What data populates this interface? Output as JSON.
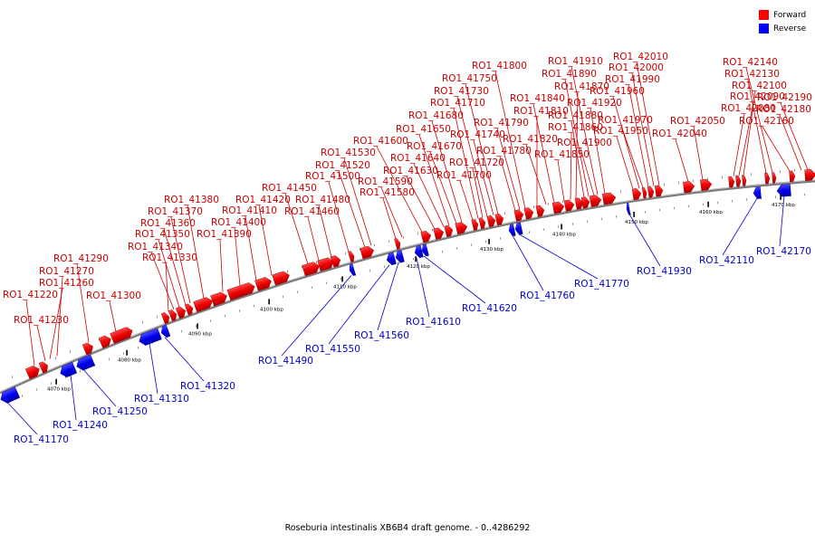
{
  "caption": "Roseburia intestinalis XB6B4 draft genome. - 0..4286292",
  "legend": [
    {
      "label": "Forward",
      "color": "#ff0000"
    },
    {
      "label": "Reverse",
      "color": "#0000ff"
    }
  ],
  "ticks": [
    "4070 kbp",
    "4080 kbp",
    "4090 kbp",
    "4100 kbp",
    "4110 kbp",
    "4120 kbp",
    "4130 kbp",
    "4140 kbp",
    "4150 kbp",
    "4160 kbp",
    "4170 kbp"
  ],
  "forward_labels": [
    "RO1_41220",
    "RO1_41230",
    "RO1_41260",
    "RO1_41270",
    "RO1_41290",
    "RO1_41300",
    "RO1_41330",
    "RO1_41340",
    "RO1_41350",
    "RO1_41360",
    "RO1_41370",
    "RO1_41380",
    "RO1_41390",
    "RO1_41400",
    "RO1_41410",
    "RO1_41420",
    "RO1_41450",
    "RO1_41460",
    "RO1_41480",
    "RO1_41500",
    "RO1_41520",
    "RO1_41530",
    "RO1_41580",
    "RO1_41590",
    "RO1_41600",
    "RO1_41630",
    "RO1_41640",
    "RO1_41650",
    "RO1_41670",
    "RO1_41680",
    "RO1_41700",
    "RO1_41710",
    "RO1_41720",
    "RO1_41730",
    "RO1_41740",
    "RO1_41750",
    "RO1_41780",
    "RO1_41790",
    "RO1_41800",
    "RO1_41810",
    "RO1_41820",
    "RO1_41840",
    "RO1_41850",
    "RO1_41860",
    "RO1_41870",
    "RO1_41880",
    "RO1_41890",
    "RO1_41900",
    "RO1_41910",
    "RO1_41920",
    "RO1_41950",
    "RO1_41960",
    "RO1_41970",
    "RO1_41990",
    "RO1_42000",
    "RO1_42010",
    "RO1_42040",
    "RO1_42050",
    "RO1_42080",
    "RO1_42090",
    "RO1_42100",
    "RO1_42130",
    "RO1_42140",
    "RO1_42160",
    "RO1_42180",
    "RO1_42190"
  ],
  "reverse_labels": [
    "RO1_41170",
    "RO1_41240",
    "RO1_41250",
    "RO1_41310",
    "RO1_41320",
    "RO1_41490",
    "RO1_41550",
    "RO1_41560",
    "RO1_41610",
    "RO1_41620",
    "RO1_41760",
    "RO1_41770",
    "RO1_41930",
    "RO1_42110",
    "RO1_42170"
  ]
}
